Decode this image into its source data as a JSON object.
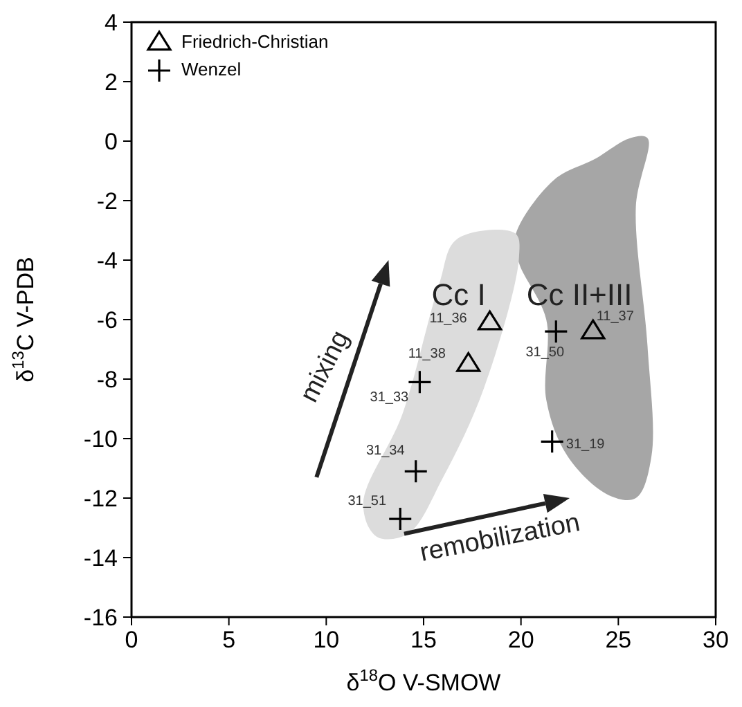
{
  "chart_data": {
    "type": "scatter",
    "xlabel": "δ$^{18}$O  V-SMOW",
    "ylabel": "δ$^{13}$C  V-PDB",
    "xlim": [
      0,
      30
    ],
    "xticks": [
      0,
      5,
      10,
      15,
      20,
      25,
      30
    ],
    "ylim": [
      -16,
      4
    ],
    "yticks": [
      -16,
      -14,
      -12,
      -10,
      -8,
      -6,
      -4,
      -2,
      0,
      2,
      4
    ],
    "grid": false,
    "legend": "top left",
    "series": [
      {
        "name": "Friedrich-Christian",
        "color": "#000000",
        "marker": "triangle",
        "x": [
          18.4,
          17.3,
          23.7
        ],
        "values": [
          -6.1,
          -7.5,
          -6.4
        ]
      },
      {
        "name": "Wenzel",
        "color": "#000000",
        "marker": "cross",
        "x": [
          14.8,
          14.6,
          13.8,
          21.8,
          21.6
        ],
        "values": [
          -8.1,
          -11.1,
          -12.7,
          -6.4,
          -10.1
        ]
      }
    ],
    "annotations": [
      {
        "text": "11_36",
        "x": 18.4,
        "y": -6.1
      },
      {
        "text": "11_38",
        "x": 17.3,
        "y": -7.5
      },
      {
        "text": "11_37",
        "x": 23.7,
        "y": -6.4
      },
      {
        "text": "31_33",
        "x": 14.8,
        "y": -8.1
      },
      {
        "text": "31_34",
        "x": 14.6,
        "y": -11.1
      },
      {
        "text": "31_51",
        "x": 13.8,
        "y": -12.7
      },
      {
        "text": "31_50",
        "x": 21.8,
        "y": -6.4
      },
      {
        "text": "31_19",
        "x": 21.6,
        "y": -10.1
      },
      "Cc I",
      "Cc II+III",
      "mixing",
      "remobilization"
    ]
  }
}
